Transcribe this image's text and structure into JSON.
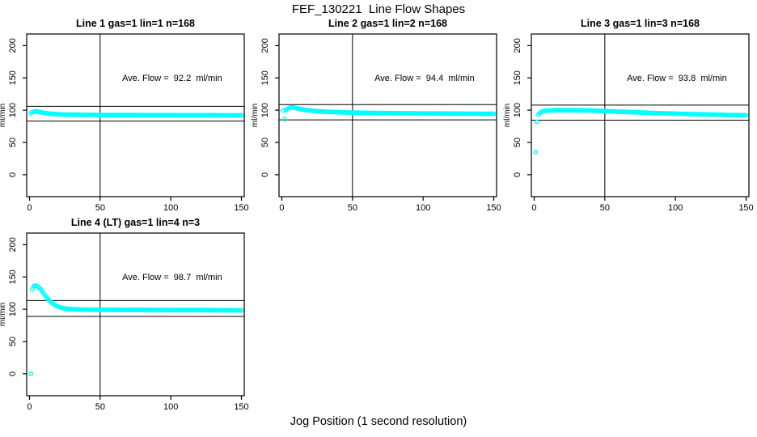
{
  "figure": {
    "title": "FEF_130221  Line Flow Shapes",
    "xlabel": "Jog Position (1 second resolution)",
    "background_color": "#ffffff",
    "axis_color": "#000000"
  },
  "chart_data": [
    {
      "type": "scatter",
      "title": "Line 1 gas=1 lin=1 n=168",
      "gas": 1,
      "lin": 1,
      "n": 168,
      "annotation": "Ave. Flow =  92.2  ml/min",
      "avg_flow_ml_min": 92.2,
      "ylabel": "ml/min",
      "x_ticks": [
        0,
        50,
        100,
        150
      ],
      "y_ticks": [
        0,
        50,
        100,
        150,
        200
      ],
      "xlim": [
        -2,
        152
      ],
      "ylim": [
        -34,
        218
      ],
      "grid": false,
      "ref_vline_x": 50,
      "ref_hlines": [
        106.0,
        83.0
      ],
      "marker": "open-circle",
      "marker_color": "#00FFFF",
      "n_markers": 150,
      "anchors": [
        [
          1,
          95
        ],
        [
          2,
          96.5
        ],
        [
          3,
          97.5
        ],
        [
          4,
          98
        ],
        [
          5,
          98
        ],
        [
          6,
          97.7
        ],
        [
          8,
          96.8
        ],
        [
          10,
          96
        ],
        [
          12,
          95.3
        ],
        [
          15,
          94.5
        ],
        [
          20,
          93.7
        ],
        [
          25,
          93.2
        ],
        [
          30,
          93
        ],
        [
          40,
          92.7
        ],
        [
          50,
          92.5
        ],
        [
          60,
          92.4
        ],
        [
          80,
          92.3
        ],
        [
          100,
          92.2
        ],
        [
          120,
          92.1
        ],
        [
          150,
          92
        ]
      ]
    },
    {
      "type": "scatter",
      "title": "Line 2 gas=1 lin=2 n=168",
      "gas": 1,
      "lin": 2,
      "n": 168,
      "annotation": "Ave. Flow =  94.4  ml/min",
      "avg_flow_ml_min": 94.4,
      "ylabel": "ml/min",
      "x_ticks": [
        0,
        50,
        100,
        150
      ],
      "y_ticks": [
        0,
        50,
        100,
        150,
        200
      ],
      "xlim": [
        -2,
        152
      ],
      "ylim": [
        -34,
        218
      ],
      "grid": false,
      "ref_vline_x": 50,
      "ref_hlines": [
        108.6,
        85.0
      ],
      "marker": "open-circle",
      "marker_color": "#00FFFF",
      "n_markers": 150,
      "anchors": [
        [
          1,
          99.5
        ],
        [
          2,
          86
        ],
        [
          3,
          100
        ],
        [
          4,
          102
        ],
        [
          5,
          103.3
        ],
        [
          6,
          104
        ],
        [
          7,
          104.2
        ],
        [
          8,
          104
        ],
        [
          10,
          103.2
        ],
        [
          12,
          102.3
        ],
        [
          15,
          101
        ],
        [
          20,
          99.5
        ],
        [
          25,
          98.4
        ],
        [
          30,
          97.6
        ],
        [
          40,
          96.8
        ],
        [
          50,
          96.2
        ],
        [
          60,
          95.8
        ],
        [
          80,
          95.3
        ],
        [
          100,
          95
        ],
        [
          120,
          94.7
        ],
        [
          150,
          94.3
        ]
      ]
    },
    {
      "type": "scatter",
      "title": "Line 3 gas=1 lin=3 n=168",
      "gas": 1,
      "lin": 3,
      "n": 168,
      "annotation": "Ave. Flow =  93.8  ml/min",
      "avg_flow_ml_min": 93.8,
      "ylabel": "ml/min",
      "x_ticks": [
        0,
        50,
        100,
        150
      ],
      "y_ticks": [
        0,
        50,
        100,
        150,
        200
      ],
      "xlim": [
        -2,
        152
      ],
      "ylim": [
        -34,
        218
      ],
      "grid": false,
      "ref_vline_x": 50,
      "ref_hlines": [
        107.9,
        84.4
      ],
      "marker": "open-circle",
      "marker_color": "#00FFFF",
      "n_markers": 150,
      "anchors": [
        [
          1,
          35
        ],
        [
          2,
          82
        ],
        [
          3,
          93
        ],
        [
          4,
          95.5
        ],
        [
          5,
          97
        ],
        [
          6,
          98
        ],
        [
          8,
          99
        ],
        [
          10,
          99.5
        ],
        [
          15,
          99.9
        ],
        [
          20,
          100
        ],
        [
          30,
          99.8
        ],
        [
          40,
          99.4
        ],
        [
          50,
          98.6
        ],
        [
          60,
          97.6
        ],
        [
          70,
          96.8
        ],
        [
          80,
          96
        ],
        [
          90,
          95.2
        ],
        [
          100,
          94.6
        ],
        [
          110,
          94
        ],
        [
          120,
          93.4
        ],
        [
          130,
          92.9
        ],
        [
          140,
          92.4
        ],
        [
          150,
          92
        ]
      ]
    },
    {
      "type": "scatter",
      "title": "Line 4 (LT) gas=1 lin=4 n=3",
      "gas": 1,
      "lin": 4,
      "n": 3,
      "annotation": "Ave. Flow =  98.7  ml/min",
      "avg_flow_ml_min": 98.7,
      "ylabel": "ml/min",
      "x_ticks": [
        0,
        50,
        100,
        150
      ],
      "y_ticks": [
        0,
        50,
        100,
        150,
        200
      ],
      "xlim": [
        -2,
        152
      ],
      "ylim": [
        -34,
        218
      ],
      "grid": false,
      "ref_vline_x": 50,
      "ref_hlines": [
        113.5,
        88.8
      ],
      "marker": "open-circle",
      "marker_color": "#00FFFF",
      "n_markers": 150,
      "anchors": [
        [
          1,
          0
        ],
        [
          2,
          131
        ],
        [
          3,
          135.5
        ],
        [
          4,
          136.5
        ],
        [
          5,
          136.2
        ],
        [
          6,
          135
        ],
        [
          7,
          133
        ],
        [
          8,
          130.5
        ],
        [
          9,
          127.5
        ],
        [
          10,
          124.5
        ],
        [
          11,
          121.5
        ],
        [
          12,
          118.5
        ],
        [
          13,
          116
        ],
        [
          14,
          113.5
        ],
        [
          15,
          111.5
        ],
        [
          16,
          109.5
        ],
        [
          17,
          108
        ],
        [
          18,
          106.5
        ],
        [
          19,
          105.3
        ],
        [
          20,
          104.3
        ],
        [
          22,
          102.7
        ],
        [
          24,
          101.6
        ],
        [
          26,
          100.8
        ],
        [
          28,
          100.3
        ],
        [
          30,
          100
        ],
        [
          35,
          99.6
        ],
        [
          40,
          99.4
        ],
        [
          50,
          99.2
        ],
        [
          60,
          99.1
        ],
        [
          80,
          99
        ],
        [
          100,
          98.8
        ],
        [
          120,
          98.7
        ],
        [
          150,
          98.2
        ]
      ]
    }
  ]
}
